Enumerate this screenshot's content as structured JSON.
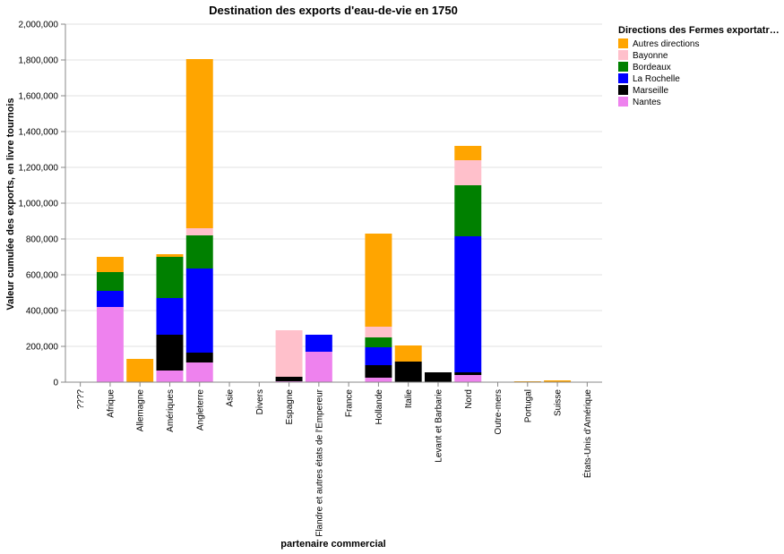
{
  "chart_data": {
    "type": "bar",
    "stacked": true,
    "title": "Destination des exports d'eau-de-vie en 1750",
    "xlabel": "partenaire commercial",
    "ylabel": "Valeur cumulée des exports, en livre tournois",
    "ylim": [
      0,
      2000000
    ],
    "yticks": [
      0,
      200000,
      400000,
      600000,
      800000,
      1000000,
      1200000,
      1400000,
      1600000,
      1800000,
      2000000
    ],
    "ytick_labels": [
      "0",
      "200,000",
      "400,000",
      "600,000",
      "800,000",
      "1,000,000",
      "1,200,000",
      "1,400,000",
      "1,600,000",
      "1,800,000",
      "2,000,000"
    ],
    "grid": true,
    "legend_position": "right",
    "legend_title": "Directions des Fermes exportatr…",
    "categories": [
      "????",
      "Afrique",
      "Allemagne",
      "Amériques",
      "Angleterre",
      "Asie",
      "Divers",
      "Espagne",
      "Flandre et autres états de l'Empereur",
      "France",
      "Hollande",
      "Italie",
      "Levant et Barbarie",
      "Nord",
      "Outre-mers",
      "Portugal",
      "Suisse",
      "États-Unis d'Amérique"
    ],
    "series": [
      {
        "name": "Nantes",
        "color": "#ee82ee",
        "values": [
          0,
          420000,
          0,
          65000,
          110000,
          0,
          0,
          5000,
          170000,
          0,
          25000,
          0,
          0,
          40000,
          0,
          0,
          0,
          0
        ]
      },
      {
        "name": "Marseille",
        "color": "#000000",
        "values": [
          0,
          0,
          0,
          200000,
          55000,
          0,
          0,
          25000,
          0,
          0,
          70000,
          115000,
          55000,
          15000,
          0,
          0,
          0,
          0
        ]
      },
      {
        "name": "La Rochelle",
        "color": "#0000ff",
        "values": [
          0,
          90000,
          0,
          205000,
          470000,
          0,
          0,
          0,
          95000,
          0,
          100000,
          0,
          0,
          760000,
          0,
          0,
          0,
          0
        ]
      },
      {
        "name": "Bordeaux",
        "color": "#008000",
        "values": [
          0,
          105000,
          0,
          230000,
          185000,
          0,
          0,
          0,
          0,
          0,
          55000,
          0,
          0,
          285000,
          0,
          0,
          0,
          0
        ]
      },
      {
        "name": "Bayonne",
        "color": "#ffc0cb",
        "values": [
          0,
          0,
          0,
          0,
          40000,
          0,
          0,
          260000,
          0,
          0,
          60000,
          0,
          0,
          140000,
          0,
          3000,
          0,
          0
        ]
      },
      {
        "name": "Autres directions",
        "color": "#ffa500",
        "values": [
          0,
          85000,
          130000,
          15000,
          945000,
          0,
          0,
          0,
          0,
          0,
          520000,
          90000,
          0,
          80000,
          0,
          2000,
          10000,
          0
        ]
      }
    ],
    "legend_order": [
      "Autres directions",
      "Bayonne",
      "Bordeaux",
      "La Rochelle",
      "Marseille",
      "Nantes"
    ]
  }
}
